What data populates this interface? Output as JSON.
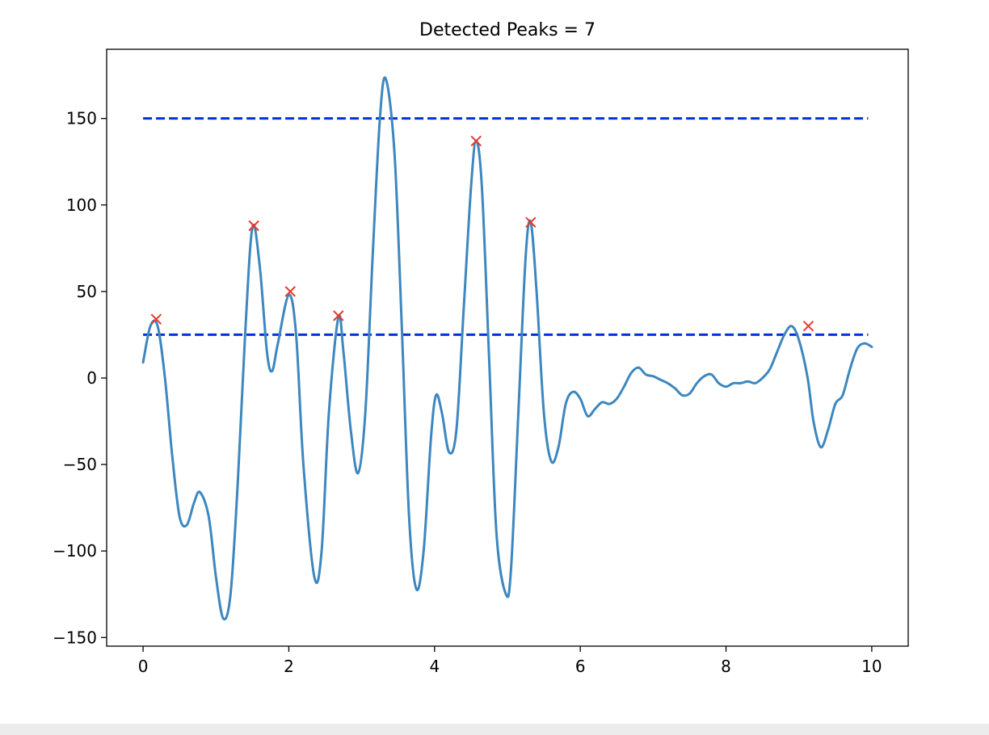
{
  "chart_data": {
    "type": "line",
    "title": "Detected Peaks = 7",
    "xlabel": "",
    "ylabel": "",
    "xlim": [
      -0.5,
      10.5
    ],
    "ylim": [
      -155,
      190
    ],
    "grid": false,
    "xticks": [
      0,
      2,
      4,
      6,
      8,
      10
    ],
    "xtick_labels": [
      "0",
      "2",
      "4",
      "6",
      "8",
      "10"
    ],
    "yticks": [
      150,
      100,
      50,
      0,
      -50,
      -100,
      -150
    ],
    "ytick_labels": [
      "150",
      "100",
      "50",
      "0",
      "−50",
      "−100",
      "−150"
    ],
    "series": [
      {
        "kind": "line",
        "color": "#3d87bf",
        "x": [
          0,
          0.1,
          0.2,
          0.3,
          0.4,
          0.5,
          0.6,
          0.7,
          0.78,
          0.9,
          1.0,
          1.1,
          1.2,
          1.3,
          1.4,
          1.5,
          1.6,
          1.7,
          1.77,
          1.85,
          2.0,
          2.1,
          2.2,
          2.35,
          2.45,
          2.55,
          2.68,
          2.75,
          2.85,
          2.95,
          3.05,
          3.15,
          3.25,
          3.33,
          3.45,
          3.55,
          3.65,
          3.75,
          3.85,
          3.95,
          4.02,
          4.1,
          4.2,
          4.3,
          4.4,
          4.5,
          4.57,
          4.65,
          4.75,
          4.85,
          4.98,
          5.05,
          5.15,
          5.25,
          5.32,
          5.4,
          5.5,
          5.6,
          5.7,
          5.8,
          5.9,
          6.0,
          6.1,
          6.2,
          6.3,
          6.4,
          6.5,
          6.6,
          6.7,
          6.8,
          6.9,
          7.0,
          7.1,
          7.2,
          7.3,
          7.4,
          7.5,
          7.6,
          7.7,
          7.8,
          7.9,
          8.0,
          8.1,
          8.2,
          8.3,
          8.4,
          8.5,
          8.6,
          8.7,
          8.8,
          8.9,
          9.0,
          9.12,
          9.2,
          9.3,
          9.4,
          9.5,
          9.6,
          9.7,
          9.8,
          9.9,
          10.0
        ],
        "y": [
          9,
          30,
          30,
          0,
          -45,
          -80,
          -85,
          -72,
          -66,
          -80,
          -115,
          -139,
          -125,
          -60,
          25,
          87,
          65,
          15,
          4,
          20,
          48,
          25,
          -50,
          -115,
          -100,
          -20,
          35,
          15,
          -30,
          -55,
          -20,
          70,
          150,
          173,
          130,
          30,
          -80,
          -122,
          -100,
          -35,
          -10,
          -20,
          -43,
          -30,
          40,
          110,
          137,
          110,
          10,
          -90,
          -125,
          -110,
          -20,
          70,
          90,
          50,
          -20,
          -48,
          -40,
          -15,
          -8,
          -12,
          -22,
          -18,
          -14,
          -15,
          -12,
          -5,
          3,
          6,
          2,
          1,
          -1,
          -3,
          -6,
          -10,
          -9,
          -3,
          1,
          2,
          -3,
          -5,
          -3,
          -3,
          -2,
          -3,
          0,
          5,
          15,
          25,
          30,
          22,
          0,
          -25,
          -40,
          -30,
          -15,
          -10,
          5,
          17,
          20,
          18
        ]
      }
    ],
    "thresholds": [
      {
        "name": "upper",
        "value": 150,
        "x_range": [
          0,
          9.95
        ],
        "color": "#0033dd",
        "style": "dashed"
      },
      {
        "name": "lower",
        "value": 25,
        "x_range": [
          0,
          9.95
        ],
        "color": "#0033dd",
        "style": "dashed"
      }
    ],
    "peaks": {
      "marker": "x",
      "color": "#e63a2b",
      "x": [
        0.18,
        1.52,
        2.02,
        2.68,
        4.57,
        5.32,
        9.13
      ],
      "y": [
        34,
        88,
        50,
        36,
        137,
        90,
        30
      ]
    }
  }
}
